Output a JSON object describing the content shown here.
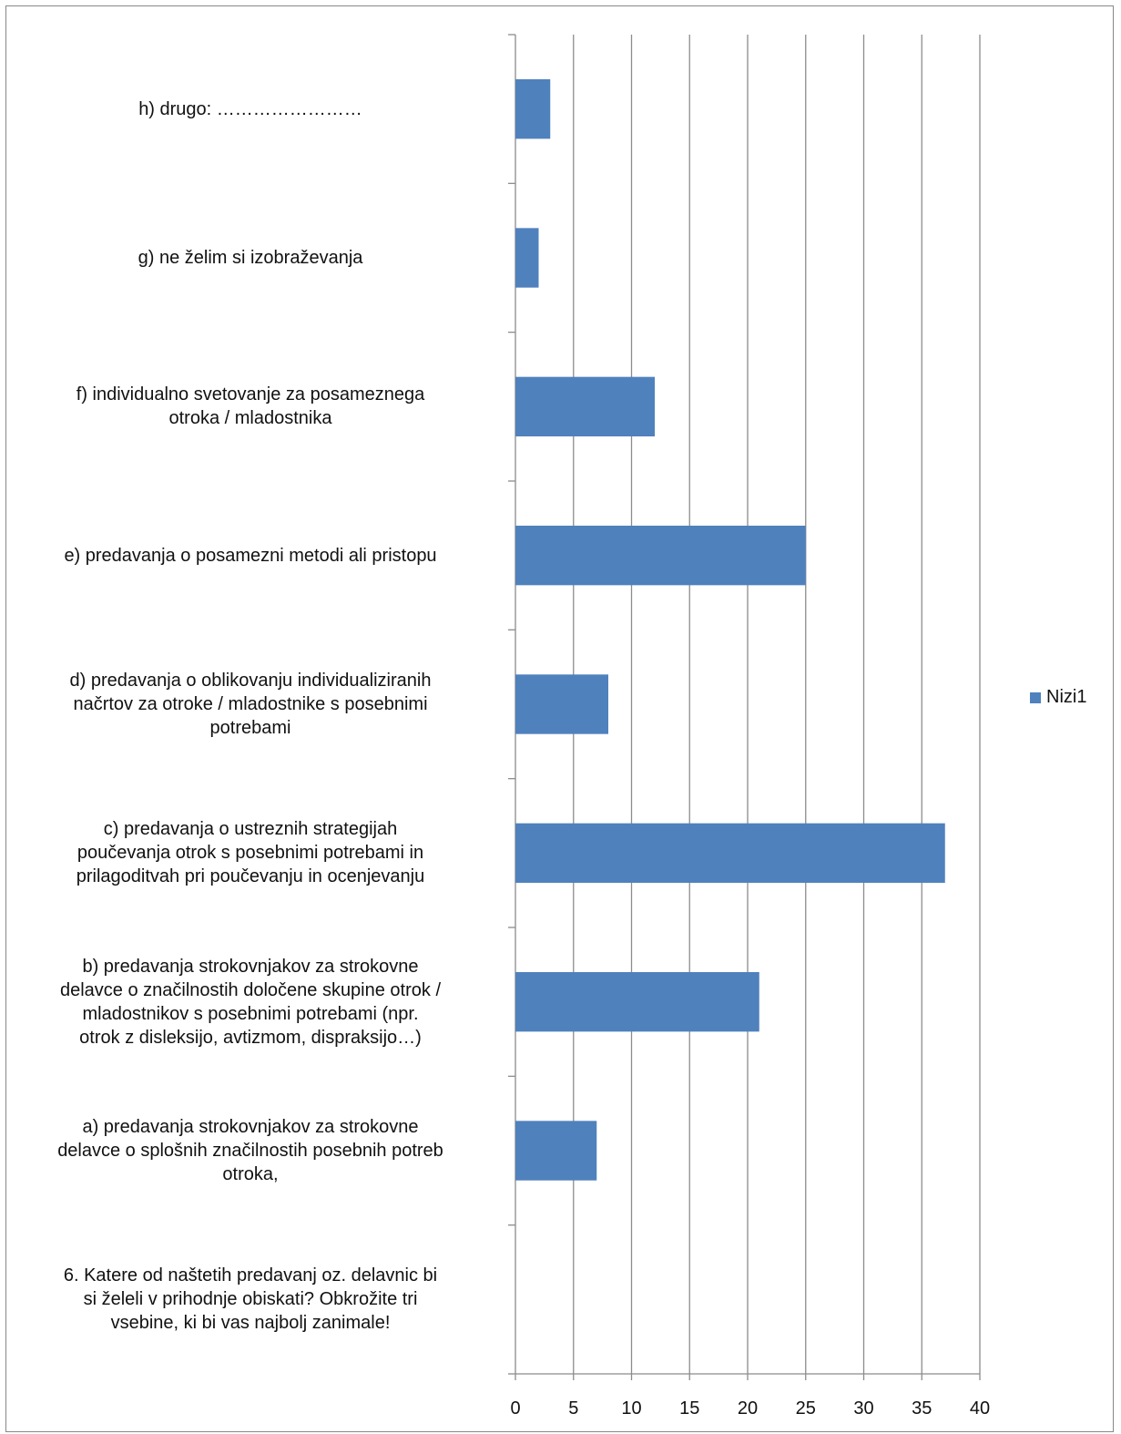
{
  "chart_data": {
    "type": "bar",
    "orientation": "horizontal",
    "categories": [
      "6. Katere od naštetih predavanj oz. delavnic bi si želeli v prihodnje obiskati? Obkrožite tri vsebine, ki bi vas najbolj zanimale!",
      "a) predavanja strokovnjakov za strokovne delavce o splošnih značilnostih posebnih potreb otroka,",
      "b) predavanja strokovnjakov za strokovne delavce o značilnostih določene skupine otrok / mladostnikov s posebnimi potrebami  (npr. otrok z disleksijo, avtizmom, dispraksijo…)",
      "c) predavanja o ustreznih strategijah poučevanja otrok s posebnimi potrebami in prilagoditvah pri poučevanju in ocenjevanju",
      "d) predavanja o oblikovanju individualiziranih načrtov za otroke / mladostnike s posebnimi potrebami",
      "e) predavanja o posamezni metodi ali pristopu",
      "f) individualno svetovanje za posameznega otroka / mladostnika",
      "g) ne želim si izobraževanja",
      "h) drugo: ……………………"
    ],
    "category_lines": [
      [
        "6. Katere od naštetih predavanj oz. delavnic bi",
        "si želeli v prihodnje obiskati? Obkrožite tri",
        "vsebine, ki bi vas najbolj zanimale!"
      ],
      [
        "a) predavanja strokovnjakov za strokovne",
        "delavce o splošnih značilnostih posebnih potreb",
        "otroka,"
      ],
      [
        "b) predavanja strokovnjakov za strokovne",
        "delavce o značilnostih določene skupine otrok /",
        "mladostnikov s posebnimi potrebami  (npr.",
        "otrok z disleksijo, avtizmom, dispraksijo…)"
      ],
      [
        "c) predavanja o ustreznih strategijah",
        "poučevanja otrok s posebnimi potrebami in",
        "prilagoditvah pri poučevanju in ocenjevanju"
      ],
      [
        "d) predavanja o oblikovanju individualiziranih",
        "načrtov za otroke / mladostnike s posebnimi",
        "potrebami"
      ],
      [
        "e) predavanja o posamezni metodi ali pristopu"
      ],
      [
        "f) individualno svetovanje za posameznega",
        "otroka / mladostnika"
      ],
      [
        "g) ne želim si izobraževanja"
      ],
      [
        "h) drugo: ……………………"
      ]
    ],
    "series": [
      {
        "name": "Nizi1",
        "values": [
          null,
          7,
          21,
          37,
          8,
          25,
          12,
          2,
          3
        ]
      }
    ],
    "xlim": [
      0,
      40
    ],
    "xticks": [
      0,
      5,
      10,
      15,
      20,
      25,
      30,
      35,
      40
    ],
    "grid": "vertical",
    "legend_position": "right",
    "colors": {
      "bar": "#4F81BD",
      "grid": "#8C8C8C",
      "axis": "#8C8C8C",
      "frame": "#888888"
    }
  }
}
